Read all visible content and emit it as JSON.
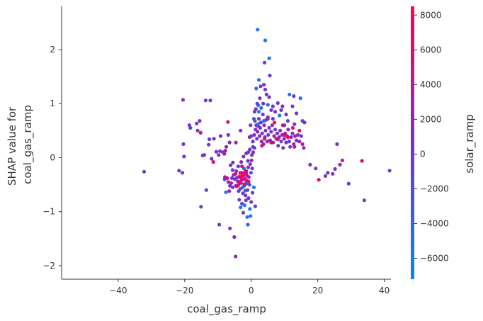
{
  "chart_data": {
    "type": "scatter",
    "title": "",
    "xlabel": "coal_gas_ramp",
    "ylabel_lines": [
      "SHAP value for",
      "coal_gas_ramp"
    ],
    "xlim": [
      -57,
      42
    ],
    "ylim": [
      -2.25,
      2.8
    ],
    "x_ticks": [
      -40,
      -20,
      0,
      20,
      40
    ],
    "x_tick_labels": [
      "−40",
      "−20",
      "0",
      "20",
      "40"
    ],
    "y_ticks": [
      -2,
      -1,
      0,
      1,
      2
    ],
    "y_tick_labels": [
      "−2",
      "−1",
      "0",
      "1",
      "2"
    ],
    "grid": false,
    "colorbar": {
      "label": "solar_ramp",
      "range": [
        -7200,
        8500
      ],
      "ticks": [
        -6000,
        -4000,
        -2000,
        0,
        2000,
        4000,
        6000,
        8000
      ],
      "tick_labels": [
        "−6000",
        "−4000",
        "−2000",
        "0",
        "2000",
        "4000",
        "6000",
        "8000"
      ],
      "colormap": [
        "#008afb",
        "#7a30c8",
        "#ff0052"
      ]
    },
    "points": [
      [
        -32.2,
        -0.26,
        0
      ],
      [
        -21.7,
        -0.24,
        0
      ],
      [
        -20.7,
        -0.28,
        0
      ],
      [
        -20.5,
        1.07,
        500
      ],
      [
        -20.2,
        0.02,
        0
      ],
      [
        -20.4,
        0.25,
        0
      ],
      [
        -18.3,
        0.55,
        500
      ],
      [
        -18.6,
        0.6,
        0
      ],
      [
        -16.1,
        0.5,
        1000
      ],
      [
        -16.4,
        0.63,
        0
      ],
      [
        -15.5,
        0.68,
        1500
      ],
      [
        -15.2,
        0.46,
        5000
      ],
      [
        -14.6,
        0.04,
        0
      ],
      [
        -14.1,
        0.05,
        0
      ],
      [
        -13.7,
        1.06,
        500
      ],
      [
        -12.8,
        0.24,
        500
      ],
      [
        -12.6,
        0.34,
        0
      ],
      [
        -11.9,
        -0.02,
        0
      ],
      [
        -11.2,
        0.35,
        0
      ],
      [
        -10.5,
        0.11,
        1000
      ],
      [
        -9.8,
        0.05,
        500
      ],
      [
        -9.4,
        0.12,
        0
      ],
      [
        -9.2,
        0.4,
        500
      ],
      [
        -8.5,
        0.1,
        2000
      ],
      [
        -8.1,
        0.07,
        0
      ],
      [
        -7.8,
        0.13,
        5000
      ],
      [
        -7.0,
        0.66,
        6000
      ],
      [
        -6.9,
        0.42,
        0
      ],
      [
        -7.5,
        0.2,
        2000
      ],
      [
        -6.2,
        -0.14,
        0
      ],
      [
        -11.4,
        -0.08,
        6000
      ],
      [
        -15.1,
        -0.91,
        0
      ],
      [
        -13.5,
        -0.6,
        0
      ],
      [
        -9.6,
        -1.24,
        0
      ],
      [
        -8.0,
        -0.4,
        1000
      ],
      [
        -7.6,
        -0.64,
        -5000
      ],
      [
        -6.6,
        -0.62,
        2000
      ],
      [
        -6.0,
        -0.47,
        5000
      ],
      [
        -5.6,
        -0.55,
        0
      ],
      [
        -5.3,
        -0.32,
        0
      ],
      [
        -5.8,
        -0.38,
        500
      ],
      [
        -6.4,
        -1.31,
        0
      ],
      [
        -5.1,
        -1.47,
        500
      ],
      [
        -4.7,
        -1.83,
        500
      ],
      [
        -5.5,
        -0.09,
        0
      ],
      [
        -4.9,
        -0.4,
        0
      ],
      [
        -4.6,
        -0.52,
        500
      ],
      [
        -4.3,
        -0.37,
        1000
      ],
      [
        -4.0,
        -0.44,
        2000
      ],
      [
        -3.8,
        -0.62,
        0
      ],
      [
        -3.5,
        -0.35,
        5000
      ],
      [
        -3.3,
        -0.58,
        0
      ],
      [
        -3.1,
        -0.47,
        500
      ],
      [
        -2.9,
        -0.28,
        0
      ],
      [
        -2.7,
        -0.41,
        4000
      ],
      [
        -2.5,
        -0.66,
        0
      ],
      [
        -2.3,
        -0.33,
        1000
      ],
      [
        -2.1,
        -0.52,
        -500
      ],
      [
        -1.9,
        -0.39,
        2000
      ],
      [
        -1.7,
        -0.7,
        0
      ],
      [
        -1.5,
        -0.25,
        -500
      ],
      [
        -1.3,
        -0.44,
        500
      ],
      [
        -1.1,
        -0.6,
        0
      ],
      [
        -0.9,
        -0.18,
        1000
      ],
      [
        -0.7,
        -0.36,
        2500
      ],
      [
        -0.5,
        -0.5,
        -1000
      ],
      [
        -0.3,
        -0.12,
        0
      ],
      [
        -0.1,
        -0.28,
        -2500
      ],
      [
        0.1,
        -0.05,
        500
      ],
      [
        0.3,
        -0.2,
        0
      ],
      [
        -3.6,
        -0.78,
        -500
      ],
      [
        -3.2,
        -0.92,
        -5000
      ],
      [
        -2.8,
        -0.85,
        0
      ],
      [
        -2.4,
        -1.02,
        -500
      ],
      [
        -2.0,
        -0.88,
        -5500
      ],
      [
        -1.6,
        -0.79,
        -500
      ],
      [
        -1.2,
        -1.1,
        -5000
      ],
      [
        -0.8,
        -0.75,
        0
      ],
      [
        -0.4,
        -0.95,
        -6000
      ],
      [
        0.0,
        -0.82,
        -500
      ],
      [
        0.4,
        -0.65,
        0
      ],
      [
        0.8,
        -0.55,
        -5000
      ],
      [
        1.2,
        -0.9,
        0
      ],
      [
        -1.0,
        -1.24,
        -4500
      ],
      [
        -0.2,
        -1.08,
        -5500
      ],
      [
        -2.6,
        -0.55,
        -4000
      ],
      [
        -1.8,
        -0.61,
        -3000
      ],
      [
        -1.4,
        -0.48,
        -3500
      ],
      [
        -2.2,
        -0.2,
        -4500
      ],
      [
        -4.5,
        -0.25,
        -1000
      ],
      [
        -3.9,
        -0.16,
        0
      ],
      [
        -3.0,
        -0.08,
        500
      ],
      [
        -2.3,
        0.02,
        1000
      ],
      [
        -1.5,
        0.08,
        0
      ],
      [
        -0.9,
        0.1,
        500
      ],
      [
        -0.4,
        0.15,
        0
      ],
      [
        0.2,
        0.05,
        1500
      ],
      [
        0.6,
        0.1,
        -500
      ],
      [
        1.0,
        0.18,
        0
      ],
      [
        0.5,
        0.3,
        0
      ],
      [
        0.9,
        0.42,
        1000
      ],
      [
        1.3,
        0.52,
        0
      ],
      [
        1.5,
        0.6,
        500
      ],
      [
        1.1,
        0.68,
        -500
      ],
      [
        1.7,
        0.35,
        0
      ],
      [
        1.9,
        0.48,
        2000
      ],
      [
        2.1,
        0.58,
        500
      ],
      [
        2.3,
        0.72,
        0
      ],
      [
        2.5,
        0.4,
        1000
      ],
      [
        2.7,
        0.55,
        -500
      ],
      [
        2.9,
        0.65,
        0
      ],
      [
        3.1,
        0.3,
        3000
      ],
      [
        3.3,
        0.45,
        500
      ],
      [
        3.5,
        0.8,
        0
      ],
      [
        3.7,
        0.25,
        1000
      ],
      [
        3.9,
        0.6,
        2000
      ],
      [
        4.1,
        0.38,
        0
      ],
      [
        4.3,
        0.5,
        500
      ],
      [
        4.5,
        0.7,
        0
      ],
      [
        4.8,
        0.3,
        1500
      ],
      [
        5.1,
        0.42,
        0
      ],
      [
        5.4,
        0.55,
        500
      ],
      [
        5.7,
        0.32,
        2500
      ],
      [
        6.0,
        0.48,
        0
      ],
      [
        6.3,
        0.6,
        1000
      ],
      [
        6.6,
        0.28,
        500
      ],
      [
        6.9,
        0.4,
        3000
      ],
      [
        7.2,
        0.52,
        0
      ],
      [
        7.5,
        0.35,
        500
      ],
      [
        7.8,
        0.45,
        1000
      ],
      [
        8.1,
        0.22,
        0
      ],
      [
        8.4,
        0.38,
        2000
      ],
      [
        8.7,
        0.5,
        500
      ],
      [
        9.0,
        0.3,
        0
      ],
      [
        9.3,
        0.42,
        1500
      ],
      [
        9.6,
        0.18,
        500
      ],
      [
        9.9,
        0.35,
        0
      ],
      [
        10.2,
        0.45,
        4000
      ],
      [
        10.5,
        0.28,
        500
      ],
      [
        10.8,
        0.4,
        0
      ],
      [
        11.1,
        0.52,
        2500
      ],
      [
        11.4,
        0.3,
        500
      ],
      [
        11.7,
        0.2,
        0
      ],
      [
        12.0,
        0.38,
        1000
      ],
      [
        12.4,
        0.45,
        500
      ],
      [
        12.8,
        0.25,
        0
      ],
      [
        13.2,
        0.4,
        6000
      ],
      [
        13.6,
        0.32,
        500
      ],
      [
        14.0,
        0.42,
        0
      ],
      [
        14.5,
        0.3,
        1500
      ],
      [
        15.0,
        0.4,
        500
      ],
      [
        15.4,
        0.25,
        5000
      ],
      [
        15.8,
        0.18,
        500
      ],
      [
        5.0,
        0.72,
        6500
      ],
      [
        7.0,
        0.65,
        7000
      ],
      [
        9.5,
        0.6,
        6000
      ],
      [
        11.0,
        0.38,
        7500
      ],
      [
        12.5,
        0.55,
        6000
      ],
      [
        4.0,
        0.35,
        6500
      ],
      [
        6.0,
        0.28,
        7000
      ],
      [
        8.0,
        0.34,
        6000
      ],
      [
        3.2,
        0.22,
        5000
      ],
      [
        10.0,
        0.42,
        6000
      ],
      [
        13.0,
        0.2,
        6500
      ],
      [
        14.5,
        0.5,
        5500
      ],
      [
        1.9,
        2.37,
        -5500
      ],
      [
        4.2,
        2.17,
        -5500
      ],
      [
        4.0,
        1.76,
        0
      ],
      [
        3.8,
        1.35,
        0
      ],
      [
        5.4,
        1.84,
        -5500
      ],
      [
        5.6,
        1.52,
        0
      ],
      [
        2.3,
        1.44,
        -5500
      ],
      [
        4.2,
        1.26,
        -500
      ],
      [
        2.1,
        0.97,
        -5000
      ],
      [
        1.8,
        1.0,
        -500
      ],
      [
        2.6,
        1.1,
        0
      ],
      [
        3.0,
        0.92,
        -4500
      ],
      [
        3.6,
        1.0,
        0
      ],
      [
        2.3,
        0.85,
        -5000
      ],
      [
        4.6,
        1.17,
        0
      ],
      [
        1.5,
        1.28,
        -5000
      ],
      [
        2.8,
        1.32,
        0
      ],
      [
        5.4,
        1.12,
        0
      ],
      [
        5.0,
        0.98,
        -4000
      ],
      [
        6.0,
        0.88,
        0
      ],
      [
        6.5,
        0.95,
        -500
      ],
      [
        8.0,
        1.01,
        0
      ],
      [
        9.0,
        0.88,
        500
      ],
      [
        8.5,
        0.78,
        -5500
      ],
      [
        9.4,
        0.95,
        0
      ],
      [
        10.5,
        0.8,
        0
      ],
      [
        11.5,
        1.17,
        -5500
      ],
      [
        12.4,
        0.95,
        0
      ],
      [
        12.8,
        1.14,
        0
      ],
      [
        13.6,
        0.82,
        0
      ],
      [
        14.8,
        1.1,
        -5500
      ],
      [
        15.4,
        0.68,
        0
      ],
      [
        7.2,
        0.85,
        500
      ],
      [
        3.8,
        0.68,
        -5000
      ],
      [
        5.0,
        0.75,
        0
      ],
      [
        2.0,
        0.62,
        -4500
      ],
      [
        6.5,
        0.72,
        0
      ],
      [
        10.0,
        0.6,
        500
      ],
      [
        11.0,
        0.68,
        0
      ],
      [
        13.0,
        0.62,
        1000
      ],
      [
        1.0,
        0.85,
        0
      ],
      [
        0.8,
        0.72,
        -3500
      ],
      [
        1.4,
        0.9,
        1000
      ],
      [
        -0.2,
        0.6,
        0
      ],
      [
        0.0,
        0.4,
        -1000
      ],
      [
        0.5,
        0.2,
        -500
      ],
      [
        -0.5,
        0.38,
        1000
      ],
      [
        -1.0,
        -0.06,
        1500
      ],
      [
        -1.5,
        -0.28,
        2000
      ],
      [
        -2.8,
        -0.16,
        5000
      ],
      [
        -3.5,
        -0.45,
        6500
      ],
      [
        -4.4,
        -0.53,
        7000
      ],
      [
        -2.1,
        -0.49,
        7500
      ],
      [
        -1.3,
        -0.33,
        6000
      ],
      [
        -4.7,
        -0.3,
        6000
      ],
      [
        -5.6,
        -0.23,
        500
      ],
      [
        -6.9,
        -0.45,
        0
      ],
      [
        -7.2,
        -0.38,
        6500
      ],
      [
        -6.4,
        -0.52,
        0
      ],
      [
        -7.9,
        -0.36,
        2000
      ],
      [
        -3.0,
        -0.39,
        7000
      ],
      [
        -2.4,
        -0.3,
        6000
      ],
      [
        -1.8,
        -0.25,
        6500
      ],
      [
        -0.8,
        -0.44,
        5500
      ],
      [
        -3.9,
        -0.51,
        6000
      ],
      [
        -2.7,
        -0.34,
        8000
      ],
      [
        -1.6,
        -0.41,
        7000
      ],
      [
        -3.3,
        -0.28,
        6500
      ],
      [
        17.7,
        -0.13,
        500
      ],
      [
        19.4,
        -0.2,
        0
      ],
      [
        20.3,
        -0.41,
        6000
      ],
      [
        22.3,
        -0.34,
        0
      ],
      [
        23.0,
        -0.28,
        0
      ],
      [
        24.5,
        -0.3,
        0
      ],
      [
        25.2,
        -0.21,
        500
      ],
      [
        26.7,
        -0.13,
        0
      ],
      [
        27.4,
        -0.05,
        5000
      ],
      [
        29.3,
        -0.48,
        0
      ],
      [
        33.3,
        -0.06,
        6000
      ],
      [
        34.0,
        -0.79,
        0
      ],
      [
        41.6,
        -0.24,
        0
      ],
      [
        25.8,
        0.25,
        0
      ],
      [
        16.0,
        0.65,
        0
      ],
      [
        -3.2,
        0.5,
        0
      ],
      [
        -4.6,
        0.28,
        2000
      ],
      [
        -12.3,
        1.06,
        1000
      ],
      [
        -6.5,
        0.28,
        1500
      ]
    ]
  }
}
